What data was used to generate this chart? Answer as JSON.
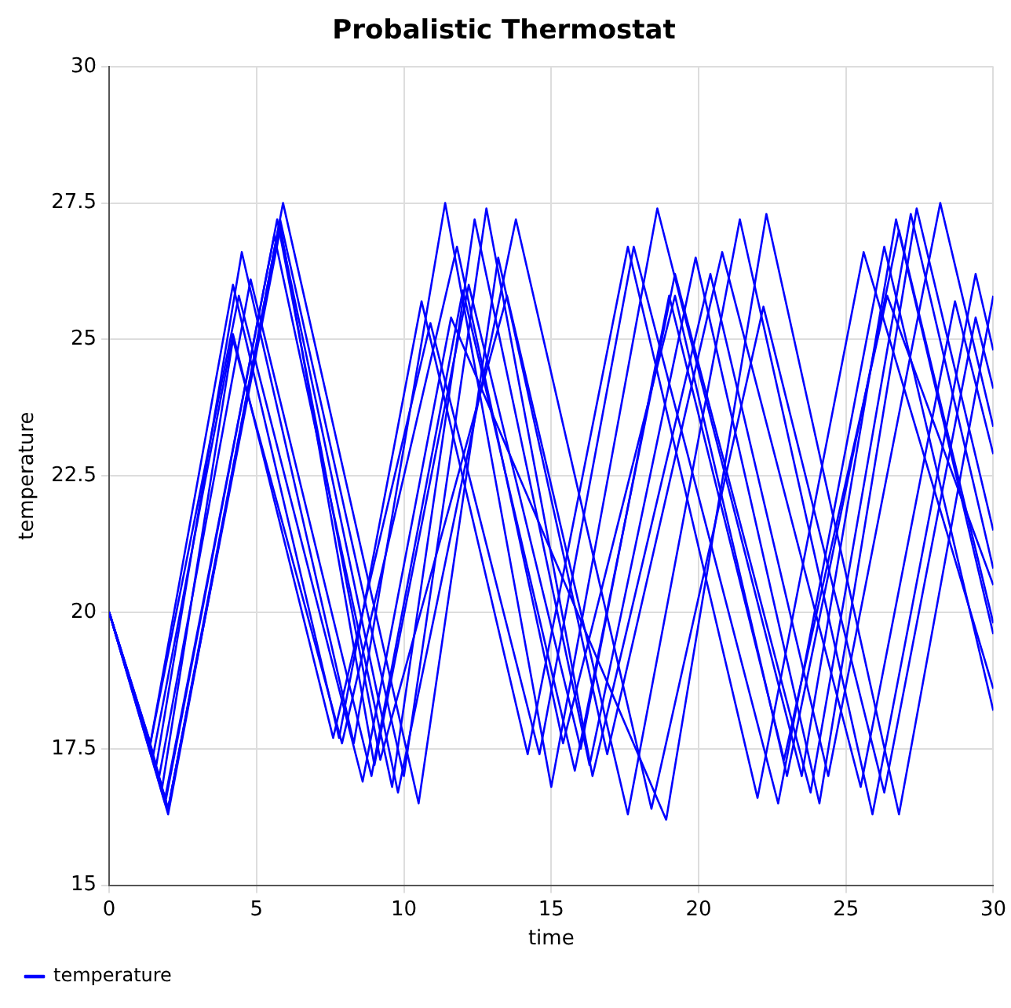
{
  "chart_data": {
    "type": "line",
    "title": "Probalistic Thermostat",
    "xlabel": "time",
    "ylabel": "temperature",
    "xlim": [
      0,
      30
    ],
    "xticks": [
      0,
      5,
      10,
      15,
      20,
      25,
      30
    ],
    "ylim": [
      15,
      30
    ],
    "yticks": [
      15,
      17.5,
      20,
      22.5,
      25,
      27.5,
      30
    ],
    "grid": true,
    "legend": "bottom left",
    "marker": "none",
    "line_style": "solid",
    "series": [
      {
        "name": "temperature",
        "color": "#0000ff",
        "x": [
          0,
          1.4,
          4.2,
          7.8,
          10.6,
          14.2,
          17.6,
          22.0,
          25.6,
          30
        ],
        "values": [
          20,
          17.6,
          26.0,
          17.7,
          25.7,
          17.4,
          26.7,
          16.6,
          26.6,
          18.6
        ]
      },
      {
        "color": "#0000ff",
        "x": [
          0,
          1.5,
          4.2,
          7.6,
          10.9,
          14.6,
          17.8,
          22.7,
          26.3,
          30
        ],
        "values": [
          20,
          17.4,
          25.1,
          17.7,
          25.3,
          17.4,
          26.7,
          16.5,
          26.7,
          18.2
        ]
      },
      {
        "color": "#0000ff",
        "x": [
          0,
          1.6,
          4.5,
          8.3,
          11.4,
          15.0,
          18.6,
          23.5,
          26.7,
          30
        ],
        "values": [
          20,
          17.2,
          26.6,
          17.6,
          27.5,
          16.8,
          27.4,
          17.0,
          27.2,
          19.6
        ]
      },
      {
        "color": "#0000ff",
        "x": [
          0,
          1.7,
          4.8,
          8.9,
          12.0,
          15.8,
          19.2,
          23.8,
          27.2,
          30
        ],
        "values": [
          20,
          17.0,
          26.1,
          17.0,
          25.9,
          17.1,
          26.2,
          16.7,
          27.3,
          20.8
        ]
      },
      {
        "color": "#0000ff",
        "x": [
          0,
          1.9,
          5.6,
          9.6,
          12.4,
          16.3,
          19.9,
          24.1,
          27.4,
          30
        ],
        "values": [
          20,
          16.6,
          26.9,
          16.8,
          27.2,
          17.2,
          26.5,
          16.5,
          27.4,
          21.5
        ]
      },
      {
        "color": "#0000ff",
        "x": [
          0,
          2.0,
          5.8,
          10.0,
          12.8,
          16.4,
          20.4,
          24.4,
          28.2,
          30
        ],
        "values": [
          20,
          16.4,
          27.2,
          17.0,
          27.4,
          17.0,
          26.2,
          17.0,
          27.5,
          23.4
        ]
      },
      {
        "color": "#0000ff",
        "x": [
          0,
          2.0,
          5.9,
          10.5,
          13.2,
          16.9,
          20.8,
          25.5,
          28.7,
          30
        ],
        "values": [
          20,
          16.3,
          27.5,
          16.5,
          26.5,
          17.4,
          26.6,
          16.8,
          25.7,
          22.9
        ]
      },
      {
        "color": "#0000ff",
        "x": [
          0,
          1.9,
          5.7,
          9.2,
          13.5,
          17.6,
          21.4,
          25.9,
          29.4,
          30
        ],
        "values": [
          20,
          16.5,
          27.2,
          17.3,
          25.8,
          16.3,
          27.2,
          16.3,
          26.2,
          24.8
        ]
      },
      {
        "color": "#0000ff",
        "x": [
          0,
          2.0,
          5.8,
          9.8,
          13.8,
          18.4,
          22.2,
          26.3,
          29.4,
          30
        ],
        "values": [
          20,
          16.4,
          27.0,
          16.7,
          27.2,
          16.4,
          25.6,
          16.7,
          25.4,
          24.1
        ]
      },
      {
        "color": "#0000ff",
        "x": [
          0,
          1.8,
          4.2,
          7.9,
          11.8,
          15.4,
          19.2,
          23.0,
          26.8,
          30
        ],
        "values": [
          20,
          16.8,
          25.0,
          17.6,
          26.7,
          17.6,
          25.8,
          17.0,
          27.0,
          19.8
        ]
      },
      {
        "color": "#0000ff",
        "x": [
          0,
          2.0,
          5.8,
          9.0,
          12.2,
          16.0,
          19.0,
          22.9,
          26.4,
          30
        ],
        "values": [
          20,
          16.4,
          27.1,
          17.2,
          26.0,
          17.5,
          25.8,
          17.3,
          25.8,
          20.5
        ]
      },
      {
        "color": "#0000ff",
        "x": [
          0,
          1.4,
          4.4,
          8.6,
          11.6,
          18.9,
          22.3,
          26.8,
          30
        ],
        "values": [
          20,
          17.6,
          25.8,
          16.9,
          25.4,
          16.2,
          27.3,
          16.3,
          25.8
        ]
      }
    ]
  }
}
